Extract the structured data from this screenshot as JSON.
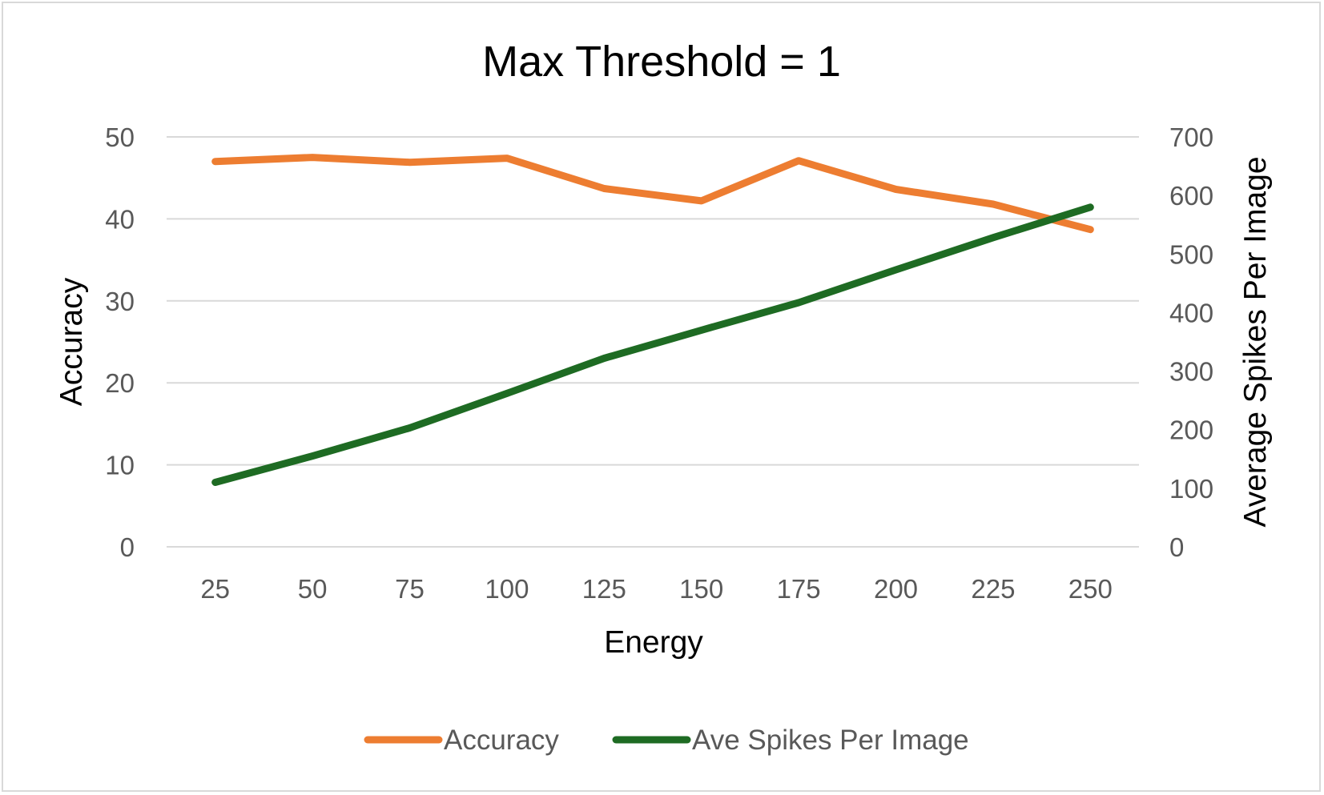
{
  "chart_data": {
    "type": "line",
    "title": "Max Threshold = 1",
    "xlabel": "Energy",
    "ylabel": "Accuracy",
    "y2label": "Average Spikes Per Image",
    "categories": [
      "25",
      "50",
      "75",
      "100",
      "125",
      "150",
      "175",
      "200",
      "225",
      "250"
    ],
    "ylim": [
      0,
      50
    ],
    "yticks": [
      "0",
      "10",
      "20",
      "30",
      "40",
      "50"
    ],
    "y2lim": [
      0,
      700
    ],
    "y2ticks": [
      "0",
      "100",
      "200",
      "300",
      "400",
      "500",
      "600",
      "700"
    ],
    "grid": true,
    "legend_position": "bottom",
    "series": [
      {
        "name": "Accuracy",
        "axis": "left",
        "color": "#ed7d31",
        "values": [
          47.0,
          47.5,
          46.9,
          47.4,
          43.7,
          42.2,
          47.1,
          43.6,
          41.8,
          38.7
        ]
      },
      {
        "name": "Ave Spikes Per Image",
        "axis": "right",
        "color": "#1e6b23",
        "values": [
          110,
          155,
          203,
          262,
          322,
          370,
          417,
          473,
          528,
          580
        ]
      }
    ]
  }
}
